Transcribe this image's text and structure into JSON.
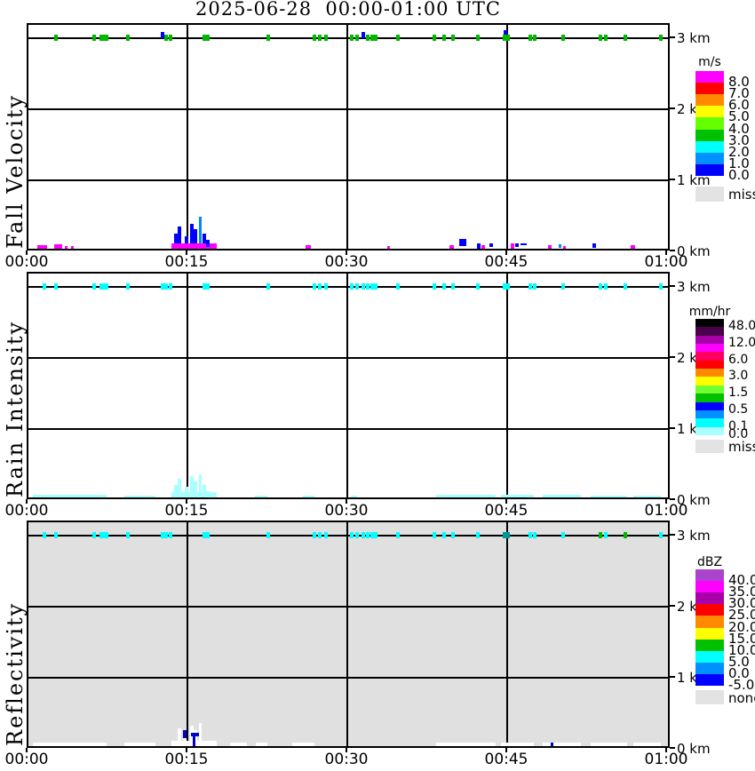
{
  "title": "2025-06-28  00:00-01:00 UTC",
  "axes": {
    "x_ticks": [
      "00:00",
      "00:15",
      "00:30",
      "00:45",
      "01:00"
    ],
    "x_tick_minutes": [
      0,
      15,
      30,
      45,
      60
    ],
    "x_range_minutes": [
      0,
      60
    ],
    "y_ticks": [
      "3 km",
      "2 km",
      "1 km",
      "0 km"
    ],
    "y_tick_km": [
      3,
      2,
      1,
      0
    ],
    "y_top_km": 3.2,
    "grid": true
  },
  "palette": {
    "g": "#00B800",
    "c": "#00FFFF",
    "t2": "#009999",
    "b": "#0000FF",
    "b2": "#0000CC",
    "d": "#0087FF",
    "m": "#FF00FF",
    "pc": "#A8FFFF",
    "w": "#FFFFFF",
    "panel3_bg": "#E0E0E0",
    "miss": "#E3E3E3",
    "frame": "#000000"
  },
  "chart_data": [
    {
      "type": "heatmap",
      "name": "fall-velocity",
      "ylabel": "Fall Velocity",
      "units": "m/s",
      "background": "#FFFFFF",
      "x_range": [
        "00:00",
        "01:00"
      ],
      "y_range_km": [
        0,
        3.2
      ],
      "legend": {
        "title": "m/s",
        "blocks": [
          [
            "#FF00FF",
            "8.0"
          ],
          [
            "#FF0000",
            "7.0"
          ],
          [
            "#FF8A00",
            "6.0"
          ],
          [
            "#FFFF00",
            "5.0"
          ],
          [
            "#66FF00",
            "4.0"
          ],
          [
            "#00C000",
            "3.0"
          ],
          [
            "#00FFFF",
            "2.0"
          ],
          [
            "#0090FF",
            "1.0"
          ],
          [
            "#0000FF",
            "0.0"
          ]
        ],
        "miss_block": {
          "color": "#E3E3E3",
          "label": "miss"
        }
      },
      "top_row_km": 3.0,
      "top_marks": [
        [
          2.6,
          "g",
          0,
          0
        ],
        [
          6.2,
          "g",
          0,
          0
        ],
        [
          6.8,
          "g",
          0,
          0
        ],
        [
          7.2,
          "g",
          1,
          0
        ],
        [
          9.3,
          "g",
          0,
          0
        ],
        [
          12.6,
          "b",
          0,
          -3
        ],
        [
          12.9,
          "g",
          0,
          0
        ],
        [
          13.3,
          "g",
          0,
          0
        ],
        [
          16.5,
          "g",
          0,
          0
        ],
        [
          16.85,
          "g",
          0,
          0
        ],
        [
          22.5,
          "g",
          0,
          0
        ],
        [
          26.8,
          "g",
          0,
          0
        ],
        [
          27.3,
          "g",
          0,
          0
        ],
        [
          27.9,
          "g",
          0,
          0
        ],
        [
          30.3,
          "g",
          0,
          0
        ],
        [
          30.8,
          "g",
          0,
          0
        ],
        [
          31.4,
          "b",
          0,
          -3
        ],
        [
          31.8,
          "g",
          0,
          0
        ],
        [
          32.4,
          "g",
          1,
          0
        ],
        [
          34.7,
          "g",
          0,
          0
        ],
        [
          38.1,
          "g",
          0,
          0
        ],
        [
          39.0,
          "g",
          0,
          0
        ],
        [
          39.8,
          "g",
          0,
          0
        ],
        [
          42.2,
          "g",
          0,
          0
        ],
        [
          44.75,
          "b",
          0,
          -5
        ],
        [
          44.8,
          "g",
          1,
          0
        ],
        [
          47.1,
          "g",
          0,
          0
        ],
        [
          47.5,
          "g",
          0,
          0
        ],
        [
          50.2,
          "g",
          0,
          0
        ],
        [
          53.7,
          "g",
          0,
          0
        ],
        [
          54.2,
          "g",
          0,
          0
        ],
        [
          56.0,
          "g",
          0,
          0
        ],
        [
          59.3,
          "g",
          0,
          0
        ]
      ],
      "surface_marks": [
        [
          1.0,
          0.9,
          0,
          0.05,
          "m"
        ],
        [
          2.55,
          0.75,
          0,
          0.06,
          "m"
        ],
        [
          3.6,
          0.25,
          0,
          0.04,
          "m"
        ],
        [
          4.15,
          0.3,
          0,
          0.04,
          "m"
        ],
        [
          13.6,
          4.2,
          0,
          0.08,
          "m"
        ],
        [
          13.85,
          0.3,
          0.08,
          0.13,
          "b"
        ],
        [
          14.2,
          0.3,
          0.08,
          0.23,
          "b"
        ],
        [
          14.85,
          0.3,
          0.08,
          0.1,
          "b"
        ],
        [
          15.35,
          0.3,
          0.08,
          0.27,
          "b"
        ],
        [
          15.7,
          0.3,
          0.08,
          0.19,
          "b"
        ],
        [
          16.15,
          0.3,
          0.08,
          0.37,
          "d"
        ],
        [
          16.5,
          0.3,
          0.08,
          0.13,
          "b"
        ],
        [
          16.85,
          0.3,
          0.02,
          0.1,
          "b"
        ],
        [
          26.2,
          0.45,
          0,
          0.05,
          "m"
        ],
        [
          33.8,
          0.3,
          0,
          0.04,
          "m"
        ],
        [
          39.7,
          0.35,
          0,
          0.05,
          "m"
        ],
        [
          40.6,
          0.65,
          0.035,
          0.1,
          "b"
        ],
        [
          42.25,
          0.3,
          0,
          0.08,
          "b"
        ],
        [
          42.7,
          0.3,
          0,
          0.05,
          "m"
        ],
        [
          43.4,
          0.35,
          0.02,
          0.06,
          "b"
        ],
        [
          45.4,
          0.35,
          0,
          0.07,
          "m"
        ],
        [
          45.85,
          0.3,
          0.03,
          0.04,
          "b"
        ],
        [
          46.3,
          0.6,
          0.045,
          0.035,
          "b"
        ],
        [
          48.9,
          0.35,
          0,
          0.05,
          "m"
        ],
        [
          49.9,
          0.3,
          0.01,
          0.05,
          "d"
        ],
        [
          50.3,
          0.3,
          0,
          0.04,
          "m"
        ],
        [
          53.1,
          0.3,
          0.01,
          0.06,
          "b"
        ],
        [
          56.7,
          0.35,
          0,
          0.05,
          "m"
        ]
      ]
    },
    {
      "type": "heatmap",
      "name": "rain-intensity",
      "ylabel": "Rain Intensity",
      "units": "mm/hr",
      "background": "#FFFFFF",
      "x_range": [
        "00:00",
        "01:00"
      ],
      "y_range_km": [
        0,
        3.2
      ],
      "legend": {
        "title": "mm/hr",
        "blocks": [
          [
            "#000000",
            "48.0"
          ],
          [
            "#4B004B",
            ""
          ],
          [
            "#A800A8",
            "12.0"
          ],
          [
            "#FF00FF",
            ""
          ],
          [
            "#FF0060",
            "6.0"
          ],
          [
            "#FF0000",
            ""
          ],
          [
            "#FF8A00",
            "3.0"
          ],
          [
            "#FFFF00",
            ""
          ],
          [
            "#70FF30",
            "1.5"
          ],
          [
            "#00C000",
            ""
          ],
          [
            "#0000FF",
            "0.5"
          ],
          [
            "#0090FF",
            ""
          ],
          [
            "#00FFFF",
            "0.1"
          ],
          [
            "#A8FFFF",
            "0.0"
          ]
        ],
        "miss_block": {
          "color": "#E3E3E3",
          "label": "miss"
        }
      },
      "top_row_km": 3.0,
      "top_marks": [
        [
          1.5,
          "c",
          0,
          0
        ],
        [
          2.6,
          "c",
          0,
          0
        ],
        [
          6.2,
          "c",
          0,
          0
        ],
        [
          6.8,
          "c",
          0,
          0
        ],
        [
          7.2,
          "c",
          1,
          0
        ],
        [
          9.3,
          "c",
          0,
          0
        ],
        [
          12.6,
          "c",
          0,
          0
        ],
        [
          12.9,
          "c",
          0,
          0
        ],
        [
          13.3,
          "c",
          0,
          0
        ],
        [
          16.5,
          "c",
          0,
          0
        ],
        [
          16.85,
          "c",
          0,
          0
        ],
        [
          22.5,
          "c",
          0,
          0
        ],
        [
          26.8,
          "c",
          0,
          0
        ],
        [
          27.3,
          "c",
          0,
          0
        ],
        [
          27.9,
          "c",
          0,
          0
        ],
        [
          30.3,
          "c",
          0,
          0
        ],
        [
          30.8,
          "c",
          0,
          0
        ],
        [
          31.4,
          "c",
          0,
          0
        ],
        [
          31.8,
          "c",
          0,
          0
        ],
        [
          32.4,
          "c",
          1,
          0
        ],
        [
          34.7,
          "c",
          0,
          0
        ],
        [
          38.1,
          "c",
          0,
          0
        ],
        [
          39.0,
          "c",
          0,
          0
        ],
        [
          39.8,
          "c",
          0,
          0
        ],
        [
          42.2,
          "c",
          0,
          0
        ],
        [
          44.8,
          "c",
          1,
          0
        ],
        [
          47.1,
          "c",
          0,
          0
        ],
        [
          47.5,
          "c",
          0,
          0
        ],
        [
          50.2,
          "c",
          0,
          0
        ],
        [
          53.7,
          "c",
          0,
          0
        ],
        [
          54.2,
          "c",
          0,
          0
        ],
        [
          56.0,
          "c",
          0,
          0
        ],
        [
          59.3,
          "c",
          0,
          0
        ]
      ],
      "surface_marks": [
        [
          0.6,
          6.9,
          0,
          0.035,
          "pc"
        ],
        [
          9.2,
          2.9,
          0,
          0.03,
          "pc"
        ],
        [
          13.6,
          4.2,
          0,
          0.07,
          "pc"
        ],
        [
          13.85,
          0.3,
          0.07,
          0.11,
          "pc"
        ],
        [
          14.2,
          0.3,
          0.07,
          0.19,
          "pc"
        ],
        [
          14.85,
          0.3,
          0.07,
          0.08,
          "pc"
        ],
        [
          15.35,
          0.3,
          0.07,
          0.23,
          "pc"
        ],
        [
          15.7,
          0.3,
          0.07,
          0.16,
          "pc"
        ],
        [
          16.15,
          0.3,
          0.07,
          0.26,
          "pc"
        ],
        [
          16.5,
          0.3,
          0.07,
          0.11,
          "pc"
        ],
        [
          16.85,
          0.35,
          0,
          0.09,
          "pc"
        ],
        [
          21.4,
          1.2,
          0,
          0.03,
          "pc"
        ],
        [
          25.9,
          1.1,
          0,
          0.03,
          "pc"
        ],
        [
          30.4,
          0.6,
          0,
          0.03,
          "pc"
        ],
        [
          38.4,
          5.6,
          0,
          0.035,
          "pc"
        ],
        [
          44.5,
          3.1,
          0,
          0.04,
          "pc"
        ],
        [
          48.4,
          3.6,
          0,
          0.035,
          "pc"
        ],
        [
          52.9,
          3.4,
          0,
          0.03,
          "pc"
        ],
        [
          56.9,
          2.6,
          0,
          0.03,
          "pc"
        ]
      ]
    },
    {
      "type": "heatmap",
      "name": "reflectivity",
      "ylabel": "Reflectivity",
      "units": "dBZ",
      "background": "#E0E0E0",
      "x_range": [
        "00:00",
        "01:00"
      ],
      "y_range_km": [
        0,
        3.2
      ],
      "legend": {
        "title": "dBZ",
        "blocks": [
          [
            "#AA44CC",
            "40.0"
          ],
          [
            "#FF00FF",
            "35.0"
          ],
          [
            "#AA00AA",
            "30.0"
          ],
          [
            "#FF0000",
            "25.0"
          ],
          [
            "#FF8A00",
            "20.0"
          ],
          [
            "#FFFF00",
            "15.0"
          ],
          [
            "#00C000",
            "10.0"
          ],
          [
            "#00FFFF",
            "5.0"
          ],
          [
            "#0090FF",
            "0.0"
          ],
          [
            "#0000FF",
            "-5.0"
          ]
        ],
        "miss_block": {
          "color": "#E3E3E3",
          "label": "none"
        }
      },
      "top_row_km": 3.0,
      "top_marks": [
        [
          1.5,
          "c",
          0,
          0
        ],
        [
          2.6,
          "c",
          0,
          0
        ],
        [
          6.2,
          "c",
          0,
          0
        ],
        [
          6.8,
          "c",
          0,
          0
        ],
        [
          7.2,
          "c",
          1,
          0
        ],
        [
          9.3,
          "c",
          0,
          0
        ],
        [
          12.6,
          "c",
          0,
          0
        ],
        [
          12.9,
          "c",
          0,
          0
        ],
        [
          13.3,
          "c",
          0,
          0
        ],
        [
          16.5,
          "c",
          0,
          0
        ],
        [
          16.85,
          "c",
          0,
          0
        ],
        [
          22.5,
          "c",
          0,
          0
        ],
        [
          26.8,
          "c",
          0,
          0
        ],
        [
          27.3,
          "c",
          0,
          0
        ],
        [
          27.9,
          "c",
          0,
          0
        ],
        [
          30.3,
          "c",
          0,
          0
        ],
        [
          30.8,
          "c",
          0,
          0
        ],
        [
          31.4,
          "c",
          0,
          0
        ],
        [
          31.8,
          "c",
          0,
          0
        ],
        [
          32.4,
          "c",
          1,
          0
        ],
        [
          34.7,
          "c",
          0,
          0
        ],
        [
          38.1,
          "c",
          0,
          0
        ],
        [
          39.0,
          "c",
          0,
          0
        ],
        [
          39.8,
          "c",
          0,
          0
        ],
        [
          42.2,
          "c",
          0,
          0
        ],
        [
          44.8,
          "t2",
          1,
          0
        ],
        [
          47.1,
          "c",
          0,
          0
        ],
        [
          47.5,
          "c",
          0,
          0
        ],
        [
          50.2,
          "c",
          0,
          0
        ],
        [
          53.7,
          "g",
          0,
          0
        ],
        [
          54.2,
          "c",
          0,
          0
        ],
        [
          56.0,
          "g",
          0,
          0
        ],
        [
          59.3,
          "c",
          0,
          0
        ]
      ],
      "surface_marks": [
        [
          0.6,
          6.9,
          0,
          0.05,
          "w"
        ],
        [
          9.2,
          2.9,
          0,
          0.05,
          "w"
        ],
        [
          13.6,
          4.2,
          0,
          0.08,
          "w"
        ],
        [
          14.2,
          0.3,
          0.08,
          0.17,
          "w"
        ],
        [
          14.7,
          0.3,
          0.08,
          0.14,
          "w"
        ],
        [
          15.35,
          0.3,
          0.08,
          0.21,
          "w"
        ],
        [
          15.7,
          0.3,
          0.08,
          0.14,
          "w"
        ],
        [
          16.15,
          0.3,
          0.08,
          0.24,
          "w"
        ],
        [
          19.1,
          1.6,
          0,
          0.05,
          "w"
        ],
        [
          21.5,
          1.1,
          0,
          0.05,
          "w"
        ],
        [
          24.9,
          2.1,
          0,
          0.05,
          "w"
        ],
        [
          38.4,
          5.6,
          0,
          0.05,
          "w"
        ],
        [
          44.5,
          3.1,
          0,
          0.05,
          "w"
        ],
        [
          48.4,
          3.6,
          0,
          0.05,
          "w"
        ],
        [
          52.9,
          3.4,
          0,
          0.05,
          "w"
        ],
        [
          56.9,
          2.6,
          0,
          0.05,
          "w"
        ],
        [
          14.7,
          0.3,
          0.11,
          0.11,
          "b2"
        ],
        [
          15.45,
          0.7,
          0.14,
          0.05,
          "b2"
        ],
        [
          15.55,
          0.3,
          0,
          0.18,
          "b2"
        ],
        [
          49.15,
          0.3,
          0,
          0.05,
          "b2"
        ]
      ]
    }
  ]
}
